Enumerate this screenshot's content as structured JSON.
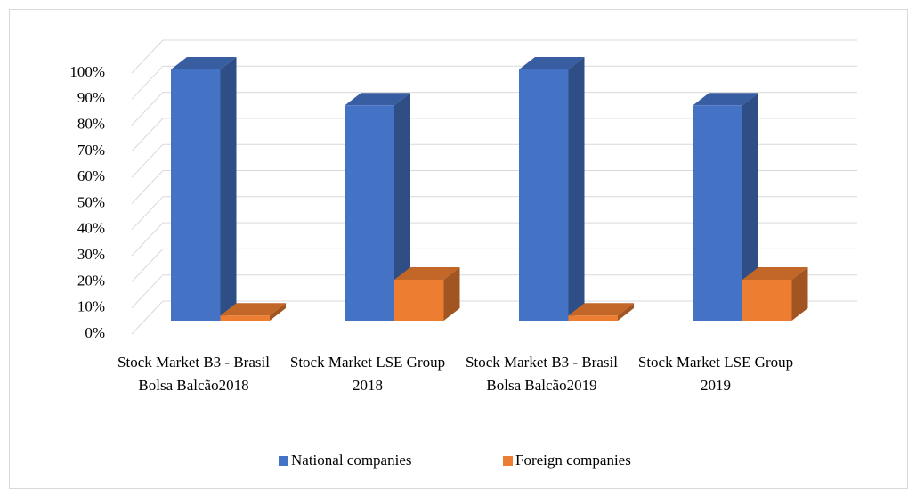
{
  "chart_data": {
    "type": "bar3d",
    "categories": [
      "Stock Market B3 - Brasil Bolsa Balcão2018",
      "Stock Market LSE Group 2018",
      "Stock Market B3 - Brasil Bolsa Balcão2019",
      "Stock Market LSE Group 2019"
    ],
    "series": [
      {
        "name": "National companies",
        "color": "#4472c4",
        "values": [
          98,
          84,
          98,
          84
        ]
      },
      {
        "name": "Foreign companies",
        "color": "#ed7d31",
        "values": [
          2,
          16,
          2,
          16
        ]
      }
    ],
    "ylim": [
      0,
      100
    ],
    "yticks": [
      {
        "value": 0,
        "label": "0%"
      },
      {
        "value": 10,
        "label": "10%"
      },
      {
        "value": 20,
        "label": "20%"
      },
      {
        "value": 30,
        "label": "30%"
      },
      {
        "value": 40,
        "label": "40%"
      },
      {
        "value": 50,
        "label": "50%"
      },
      {
        "value": 60,
        "label": "60%"
      },
      {
        "value": 70,
        "label": "70%"
      },
      {
        "value": 80,
        "label": "80%"
      },
      {
        "value": 90,
        "label": "90%"
      },
      {
        "value": 100,
        "label": "100%"
      }
    ],
    "grid": true,
    "legend": "bottom"
  }
}
